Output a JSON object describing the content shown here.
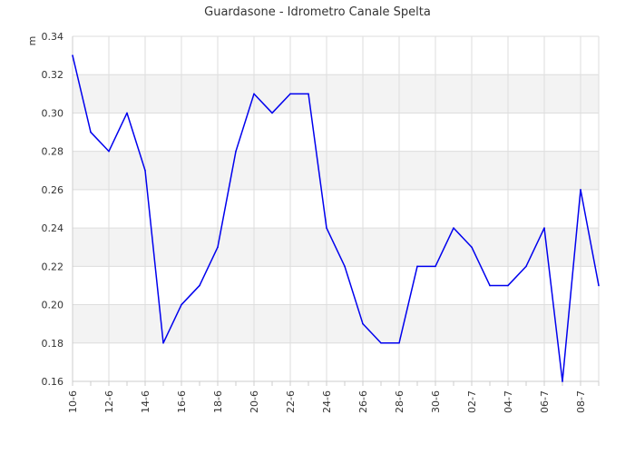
{
  "chart_data": {
    "type": "line",
    "title": "Guardasone - Idrometro Canale Spelta",
    "ylabel": "m",
    "xlabel": "",
    "ylim": [
      0.16,
      0.34
    ],
    "yticks": [
      "0.16",
      "0.18",
      "0.20",
      "0.22",
      "0.24",
      "0.26",
      "0.28",
      "0.30",
      "0.32",
      "0.34"
    ],
    "grid": true,
    "legend": "none",
    "line_color": "#0000ee",
    "categories": [
      "10-6",
      "11-6",
      "12-6",
      "13-6",
      "14-6",
      "15-6",
      "16-6",
      "17-6",
      "18-6",
      "19-6",
      "20-6",
      "21-6",
      "22-6",
      "23-6",
      "24-6",
      "25-6",
      "26-6",
      "27-6",
      "28-6",
      "29-6",
      "30-6",
      "01-7",
      "02-7",
      "03-7",
      "04-7",
      "05-7",
      "06-7",
      "07-7",
      "08-7",
      "09-7"
    ],
    "xtick_labels": [
      "10-6",
      "",
      "12-6",
      "",
      "14-6",
      "",
      "16-6",
      "",
      "18-6",
      "",
      "20-6",
      "",
      "22-6",
      "",
      "24-6",
      "",
      "26-6",
      "",
      "28-6",
      "",
      "30-6",
      "",
      "02-7",
      "",
      "04-7",
      "",
      "06-7",
      "",
      "08-7",
      ""
    ],
    "series": [
      {
        "values": [
          0.33,
          0.29,
          0.28,
          0.3,
          0.27,
          0.18,
          0.2,
          0.21,
          0.23,
          0.28,
          0.31,
          0.3,
          0.31,
          0.31,
          0.24,
          0.22,
          0.19,
          0.18,
          0.18,
          0.22,
          0.22,
          0.24,
          0.23,
          0.21,
          0.21,
          0.22,
          0.24,
          0.16,
          0.26,
          0.21
        ]
      }
    ]
  }
}
